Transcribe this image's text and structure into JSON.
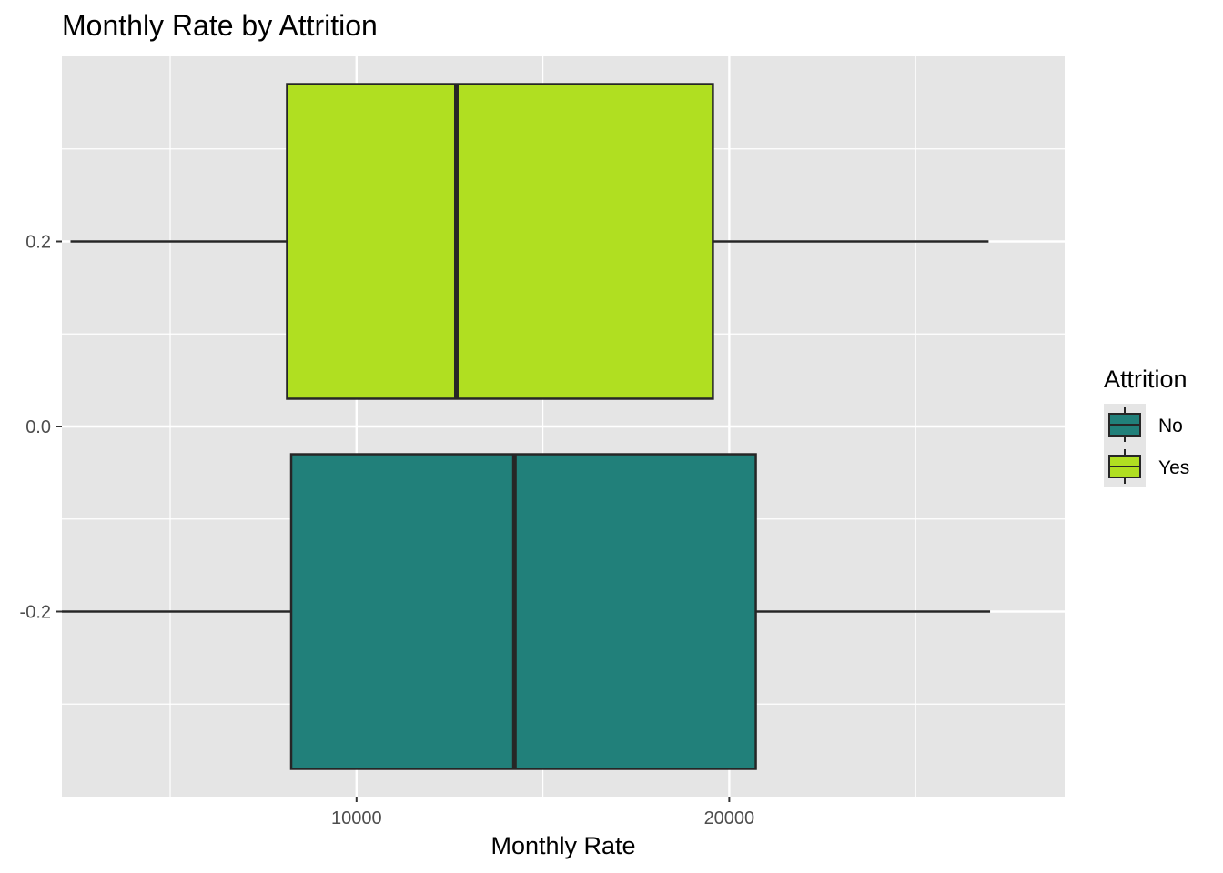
{
  "chart_data": {
    "type": "boxplot",
    "orientation": "horizontal",
    "title": "Monthly Rate by Attrition",
    "xlabel": "Monthly Rate",
    "ylabel": "",
    "xlim": [
      2094,
      29000
    ],
    "ylim": [
      -0.4,
      0.4
    ],
    "x_ticks": [
      10000,
      20000
    ],
    "x_tick_labels": [
      "10000",
      "20000"
    ],
    "y_ticks": [
      -0.2,
      0.0,
      0.2
    ],
    "y_tick_labels": [
      "-0.2",
      "0.0",
      "0.2"
    ],
    "grid": true,
    "legend": {
      "title": "Attrition",
      "position": "right",
      "entries": [
        "No",
        "Yes"
      ]
    },
    "series": [
      {
        "name": "No",
        "color": "#21807A",
        "y_center": -0.2,
        "min": 2094,
        "q1": 8247,
        "median": 14236,
        "q3": 20712,
        "max": 26999
      },
      {
        "name": "Yes",
        "color": "#B0DF21",
        "y_center": 0.2,
        "min": 2326,
        "q1": 8136,
        "median": 12678,
        "q3": 19561,
        "max": 26959
      }
    ],
    "panel_background": "#E5E5E5",
    "gridline_color": "#FFFFFF",
    "outline_color": "#262626"
  }
}
